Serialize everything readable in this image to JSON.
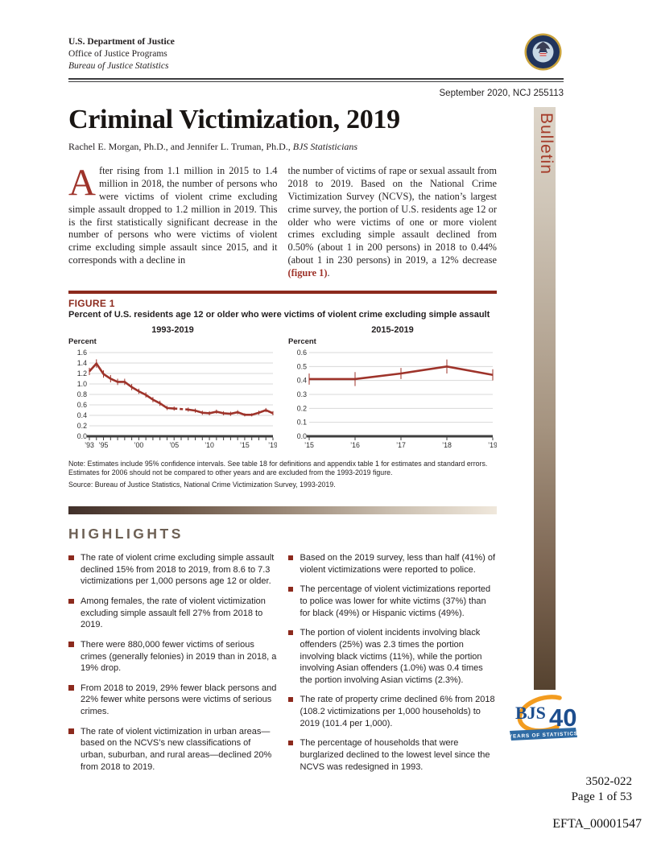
{
  "header": {
    "dept": "U.S. Department of Justice",
    "office": "Office of Justice Programs",
    "bureau": "Bureau of Justice Statistics",
    "date_line": "September 2020, NCJ 255113"
  },
  "sidebar": {
    "label": "Bulletin"
  },
  "doc": {
    "title": "Criminal Victimization, 2019",
    "byline_names": "Rachel E. Morgan, Ph.D., and Jennifer L. Truman, Ph.D., ",
    "byline_role": "BJS Statisticians"
  },
  "intro": {
    "dropcap": "A",
    "col1": "fter rising from 1.1 million in 2015 to 1.4 million in 2018, the number of persons who were victims of violent crime excluding simple assault dropped to 1.2 million in 2019. This is the first statistically significant decrease in the number of persons who were victims of violent crime excluding simple assault since 2015, and it corresponds with a decline in",
    "col2_before": "the number of victims of rape or sexual assault from 2018 to 2019. Based on the National Crime Victimization Survey (NCVS), the nation’s largest crime survey, the portion of U.S. residents age 12 or older who were victims of one or more violent crimes excluding simple assault declined from 0.50% (about 1 in 200 persons) in 2018 to 0.44% (about 1 in 230 persons) in 2019, a 12% decrease ",
    "figure_ref": "(figure 1)",
    "col2_after": "."
  },
  "figure": {
    "label": "FIGURE 1",
    "title": "Percent of U.S. residents age 12 or older who were victims of violent crime excluding simple assault",
    "percent_label": "Percent",
    "note": "Note: Estimates include 95% confidence intervals. See table 18 for definitions and appendix table 1 for estimates and standard errors. Estimates for 2006 should not be compared to other years and are excluded from the 1993-2019 figure.",
    "source": "Source: Bureau of Justice Statistics, National Crime Victimization Survey, 1993-2019."
  },
  "chart_data": [
    {
      "type": "line",
      "title": "1993-2019",
      "ylabel": "Percent",
      "x": [
        1993,
        1994,
        1995,
        1996,
        1997,
        1998,
        1999,
        2000,
        2001,
        2002,
        2003,
        2004,
        2005,
        2006,
        2007,
        2008,
        2009,
        2010,
        2011,
        2012,
        2013,
        2014,
        2015,
        2016,
        2017,
        2018,
        2019
      ],
      "values": [
        1.24,
        1.39,
        1.19,
        1.1,
        1.04,
        1.04,
        0.94,
        0.86,
        0.79,
        0.7,
        0.63,
        0.54,
        0.53,
        null,
        0.51,
        0.49,
        0.45,
        0.44,
        0.47,
        0.44,
        0.43,
        0.46,
        0.41,
        0.41,
        0.45,
        0.5,
        0.44
      ],
      "ci": [
        0.07,
        0.08,
        0.07,
        0.07,
        0.06,
        0.06,
        0.06,
        0.05,
        0.05,
        0.05,
        0.05,
        0.04,
        0.04,
        null,
        0.04,
        0.04,
        0.04,
        0.04,
        0.04,
        0.04,
        0.04,
        0.04,
        0.03,
        0.03,
        0.04,
        0.04,
        0.04
      ],
      "ylim": [
        0,
        1.6
      ],
      "ytick_step": 0.2,
      "x_tick_labels": {
        "1993": "’93",
        "1995": "’95",
        "2000": "’00",
        "2005": "’05",
        "2010": "’10",
        "2015": "’15",
        "2019": "’19"
      },
      "gap_note": "2006 excluded; shown as dashed bridge",
      "error_bars": "95% confidence intervals",
      "grid": true,
      "line_color": "#9e332a"
    },
    {
      "type": "line",
      "title": "2015-2019",
      "ylabel": "Percent",
      "x": [
        2015,
        2016,
        2017,
        2018,
        2019
      ],
      "values": [
        0.41,
        0.41,
        0.45,
        0.5,
        0.44
      ],
      "ci": [
        0.04,
        0.05,
        0.04,
        0.05,
        0.04
      ],
      "ylim": [
        0,
        0.6
      ],
      "ytick_step": 0.1,
      "x_tick_labels": {
        "2015": "’15",
        "2016": "’16",
        "2017": "’17",
        "2018": "’18",
        "2019": "’19"
      },
      "error_bars": "95% confidence intervals",
      "grid": true,
      "line_color": "#9e332a"
    }
  ],
  "highlights": {
    "heading": "HIGHLIGHTS",
    "left": [
      "The rate of violent crime excluding simple assault declined 15% from 2018 to 2019, from 8.6 to 7.3 victimizations per 1,000 persons age 12 or older.",
      "Among females, the rate of violent victimization excluding simple assault fell 27% from 2018 to 2019.",
      "There were 880,000 fewer victims of serious crimes (generally felonies) in 2019 than in 2018, a 19% drop.",
      "From 2018 to 2019, 29% fewer black persons and 22% fewer white persons were victims of serious crimes.",
      "The rate of violent victimization in urban areas—based on the NCVS’s new classifications of urban, suburban, and rural areas—declined 20% from 2018 to 2019."
    ],
    "right": [
      "Based on the 2019 survey, less than half (41%) of violent victimizations were reported to police.",
      "The percentage of violent victimizations reported to police was lower for white victims (37%) than for black (49%) or Hispanic victims (49%).",
      "The portion of violent incidents involving black offenders (25%) was 2.3 times the portion involving black victims (11%), while the portion involving Asian offenders (1.0%) was 0.4 times the portion involving Asian victims (2.3%).",
      "The rate of property crime declined 6% from 2018 (108.2 victimizations per 1,000 households) to 2019 (101.4 per 1,000).",
      "The percentage of households that were burglarized declined to the lowest level since the NCVS was redesigned in 1993."
    ]
  },
  "logo": {
    "bjs": "BJS",
    "number": "40",
    "banner": "YEARS OF STATISTICS"
  },
  "footer": {
    "doc_number": "3502-022",
    "page": "Page 1 of 53",
    "bates": "EFTA_00001547"
  },
  "colors": {
    "maroon": "#8c2a1d",
    "line_red": "#9e332a",
    "heading_brown": "#6d6054",
    "logo_blue": "#1d4e8e",
    "logo_orange": "#f39c1f",
    "banner_blue": "#2f6ba4"
  }
}
